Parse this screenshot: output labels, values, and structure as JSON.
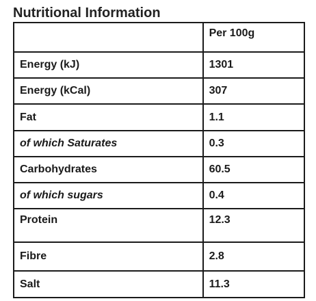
{
  "title": "Nutritional Information",
  "table": {
    "header": {
      "label": "",
      "value": "Per 100g"
    },
    "rows": [
      {
        "label": "Energy (kJ)",
        "value": "1301"
      },
      {
        "label": "Energy (kCal)",
        "value": "307"
      },
      {
        "label": "Fat",
        "value": "1.1"
      },
      {
        "label": "of which Saturates",
        "value": "0.3"
      },
      {
        "label": "Carbohydrates",
        "value": "60.5"
      },
      {
        "label": "of which sugars",
        "value": "0.4"
      },
      {
        "label": "Protein",
        "value": "12.3"
      },
      {
        "label": "Fibre",
        "value": "2.8"
      },
      {
        "label": "Salt",
        "value": "11.3"
      }
    ]
  }
}
